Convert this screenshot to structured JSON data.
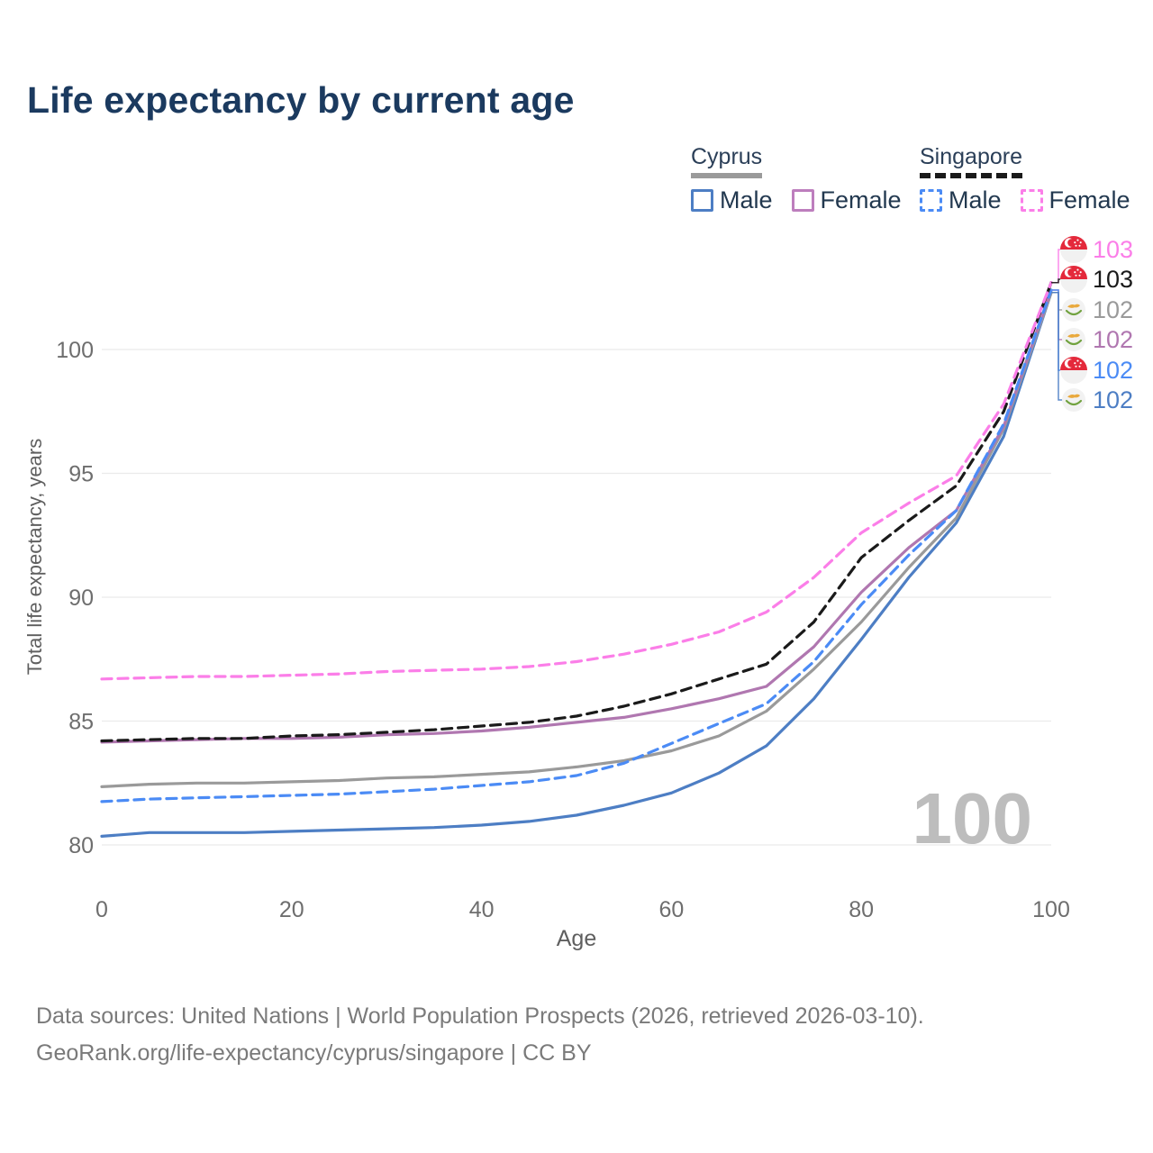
{
  "title": "Life expectancy by current age",
  "legend": {
    "groups": [
      {
        "label": "Cyprus",
        "line_style": "solid",
        "underline_color": "#9a9a9a",
        "items": [
          {
            "label": "Male",
            "color": "#4d7ec4",
            "dashed": false
          },
          {
            "label": "Female",
            "color": "#bd7ebd",
            "dashed": false
          }
        ]
      },
      {
        "label": "Singapore",
        "line_style": "dashed",
        "underline_color": "#1a1a1a",
        "items": [
          {
            "label": "Male",
            "color": "#4b8bf5",
            "dashed": true
          },
          {
            "label": "Female",
            "color": "#fb7ee8",
            "dashed": true
          }
        ]
      }
    ]
  },
  "watermark": "100",
  "chart_data": {
    "type": "line",
    "title": "Life expectancy by current age",
    "xlabel": "Age",
    "ylabel": "Total life expectancy, years",
    "xticks": [
      0,
      20,
      40,
      60,
      80,
      100
    ],
    "yticks": [
      80,
      85,
      90,
      95,
      100
    ],
    "xlim": [
      0,
      100
    ],
    "ylim": [
      80,
      100
    ],
    "grid": "horizontal",
    "legend_position": "top-right",
    "x": [
      0,
      5,
      10,
      15,
      20,
      25,
      30,
      35,
      40,
      45,
      50,
      55,
      60,
      65,
      70,
      75,
      80,
      85,
      90,
      95,
      100
    ],
    "series": [
      {
        "name": "Singapore Female",
        "country": "Singapore",
        "sex": "female",
        "color": "#fb7ee8",
        "dashed": true,
        "flag": "singapore",
        "end_label": "103",
        "values": [
          86.7,
          86.75,
          86.8,
          86.8,
          86.85,
          86.9,
          87.0,
          87.05,
          87.1,
          87.2,
          87.4,
          87.7,
          88.1,
          88.6,
          89.4,
          90.8,
          92.6,
          93.8,
          94.9,
          97.8,
          102.7
        ]
      },
      {
        "name": "Singapore",
        "country": "Singapore",
        "sex": "all",
        "color": "#1a1a1a",
        "dashed": true,
        "flag": "singapore",
        "end_label": "103",
        "values": [
          84.2,
          84.25,
          84.3,
          84.3,
          84.4,
          84.45,
          84.55,
          84.65,
          84.8,
          84.95,
          85.2,
          85.6,
          86.1,
          86.7,
          87.3,
          89.0,
          91.6,
          93.1,
          94.5,
          97.5,
          102.7
        ]
      },
      {
        "name": "Cyprus",
        "country": "Cyprus",
        "sex": "all",
        "color": "#9a9a9a",
        "dashed": false,
        "flag": "cyprus",
        "end_label": "102",
        "values": [
          82.35,
          82.45,
          82.5,
          82.5,
          82.55,
          82.6,
          82.7,
          82.75,
          82.85,
          82.95,
          83.15,
          83.4,
          83.8,
          84.4,
          85.4,
          87.1,
          89.0,
          91.2,
          93.2,
          96.8,
          102.3
        ]
      },
      {
        "name": "Cyprus Female",
        "country": "Cyprus",
        "sex": "female",
        "color": "#b077b0",
        "dashed": false,
        "flag": "cyprus",
        "end_label": "102",
        "values": [
          84.15,
          84.2,
          84.25,
          84.3,
          84.3,
          84.35,
          84.45,
          84.5,
          84.6,
          84.75,
          84.95,
          85.15,
          85.5,
          85.9,
          86.4,
          88.0,
          90.2,
          92.0,
          93.5,
          96.9,
          102.4
        ]
      },
      {
        "name": "Singapore Male",
        "country": "Singapore",
        "sex": "male",
        "color": "#4b8bf5",
        "dashed": true,
        "flag": "singapore",
        "end_label": "102",
        "values": [
          81.75,
          81.85,
          81.9,
          81.95,
          82.0,
          82.05,
          82.15,
          82.25,
          82.4,
          82.55,
          82.8,
          83.3,
          84.1,
          84.9,
          85.7,
          87.4,
          89.7,
          91.7,
          93.5,
          97.0,
          102.4
        ]
      },
      {
        "name": "Cyprus Male",
        "country": "Cyprus",
        "sex": "male",
        "color": "#4d7ec4",
        "dashed": false,
        "flag": "cyprus",
        "end_label": "102",
        "values": [
          80.35,
          80.5,
          80.5,
          80.5,
          80.55,
          80.6,
          80.65,
          80.7,
          80.8,
          80.95,
          81.2,
          81.6,
          82.1,
          82.9,
          84.0,
          85.9,
          88.3,
          90.8,
          93.0,
          96.5,
          102.3
        ]
      }
    ]
  },
  "source": {
    "line1": "Data sources: United Nations | World Population Prospects (2026, retrieved 2026-03-10).",
    "line2": "GeoRank.org/life-expectancy/cyprus/singapore | CC BY"
  }
}
